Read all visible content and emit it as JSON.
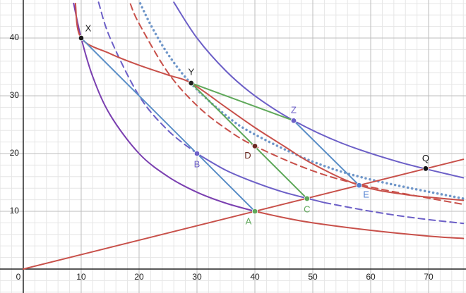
{
  "chart_data": {
    "type": "line",
    "xlim": [
      -4.02,
      76.46
    ],
    "ylim": [
      -4.15,
      46.59
    ],
    "xticks": [
      0,
      10,
      20,
      30,
      40,
      50,
      60,
      70
    ],
    "yticks": [
      10,
      20,
      30,
      40
    ],
    "grid": true,
    "minor_grid_step": 2,
    "curves": [
      {
        "color": "#7a3fb0",
        "style": "solid",
        "x": [
          8.7,
          10,
          12,
          15,
          20,
          25,
          30,
          35,
          40
        ],
        "y": [
          46,
          40,
          33.3,
          26.7,
          20,
          16,
          13.3,
          11.4,
          10
        ]
      },
      {
        "color": "#c8504a",
        "style": "solid",
        "x": [
          40,
          45,
          50,
          60,
          70,
          76
        ],
        "y": [
          10,
          8.9,
          8,
          6.7,
          5.7,
          5.3
        ]
      },
      {
        "color": "#6c5fc7",
        "style": "dashed",
        "x": [
          13,
          15,
          20,
          25,
          30
        ],
        "y": [
          46.2,
          40,
          30,
          24,
          20
        ]
      },
      {
        "color": "#6c5fc7",
        "style": "solid",
        "x": [
          30,
          35,
          40,
          45,
          52
        ],
        "y": [
          20,
          17.1,
          15,
          13.3,
          11.5
        ]
      },
      {
        "color": "#6c5fc7",
        "style": "dashed",
        "x": [
          52,
          60,
          68,
          76
        ],
        "y": [
          11.5,
          10,
          8.8,
          7.9
        ]
      },
      {
        "color": "#6c5fc7",
        "style": "solid",
        "x": [
          26,
          30,
          35,
          40,
          46.7,
          55,
          65,
          76
        ],
        "y": [
          46.2,
          40,
          34.3,
          30,
          25.7,
          21.8,
          18.5,
          15.8
        ]
      },
      {
        "color": "#c8504a",
        "style": "dashed",
        "x": [
          18.5,
          20,
          25,
          30,
          35,
          40,
          50,
          60,
          76
        ],
        "y": [
          45.9,
          42.5,
          34,
          28.3,
          24.3,
          21.3,
          17,
          14.2,
          11.2
        ]
      },
      {
        "color": "#6f96c9",
        "style": "dotted",
        "x": [
          20.2,
          22,
          25,
          29,
          35,
          40,
          50,
          60,
          76
        ],
        "y": [
          46,
          42.3,
          37.2,
          32.1,
          26.6,
          23.3,
          18.6,
          15.5,
          12.2
        ]
      },
      {
        "color": "#c8504a",
        "style": "solid",
        "x": [
          9,
          10,
          15,
          20,
          25,
          29,
          35,
          40,
          45,
          50,
          58,
          66,
          76
        ],
        "y": [
          46,
          40,
          37.3,
          35.3,
          33.6,
          32.2,
          28,
          24.5,
          21.3,
          18.2,
          14.5,
          12.9,
          11.9
        ]
      },
      {
        "color": "#c8504a",
        "style": "solid",
        "x": [
          0,
          76
        ],
        "y": [
          0,
          19
        ]
      },
      {
        "color": "#5b8fc7",
        "style": "solid",
        "x": [
          10,
          40
        ],
        "y": [
          40,
          10
        ]
      },
      {
        "color": "#5b8fc7",
        "style": "solid",
        "x": [
          46.7,
          58
        ],
        "y": [
          25.7,
          14.5
        ]
      },
      {
        "color": "#5fa85a",
        "style": "solid",
        "x": [
          29,
          46.7
        ],
        "y": [
          32.2,
          25.7
        ]
      },
      {
        "color": "#5fa85a",
        "style": "solid",
        "x": [
          29,
          49
        ],
        "y": [
          32.2,
          12.2
        ]
      }
    ],
    "points": [
      {
        "label": "X",
        "x": 10,
        "y": 40,
        "color": "#1a1a1a"
      },
      {
        "label": "Y",
        "x": 29,
        "y": 32.2,
        "color": "#222222"
      },
      {
        "label": "Z",
        "x": 46.7,
        "y": 25.7,
        "color": "#6c5fc7"
      },
      {
        "label": "B",
        "x": 30,
        "y": 20,
        "color": "#6c5fc7"
      },
      {
        "label": "D",
        "x": 40,
        "y": 21.3,
        "color": "#6b2a22"
      },
      {
        "label": "A",
        "x": 40,
        "y": 10,
        "color": "#5fa85a"
      },
      {
        "label": "C",
        "x": 49,
        "y": 12.2,
        "color": "#5fa85a"
      },
      {
        "label": "E",
        "x": 58,
        "y": 14.5,
        "color": "#4f7fd0"
      },
      {
        "label": "Q",
        "x": 69.5,
        "y": 17.4,
        "color": "#111111"
      }
    ]
  }
}
